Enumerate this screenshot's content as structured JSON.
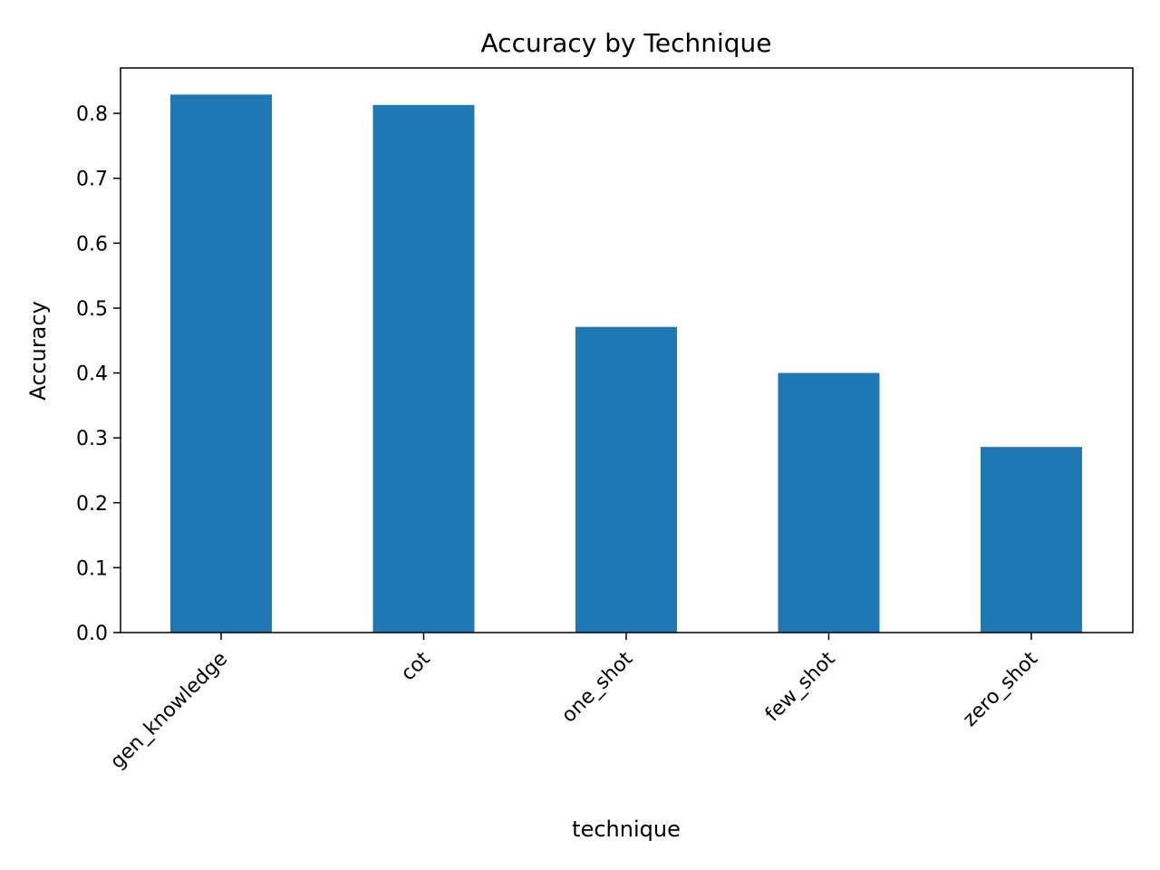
{
  "chart_data": {
    "type": "bar",
    "title": "Accuracy by Technique",
    "xlabel": "technique",
    "ylabel": "Accuracy",
    "categories": [
      "gen_knowledge",
      "cot",
      "one_shot",
      "few_shot",
      "zero_shot"
    ],
    "values": [
      0.829,
      0.813,
      0.471,
      0.4,
      0.286
    ],
    "ylim": [
      0,
      0.87
    ],
    "yticks": [
      "0.0",
      "0.1",
      "0.2",
      "0.3",
      "0.4",
      "0.5",
      "0.6",
      "0.7",
      "0.8"
    ],
    "grid": false,
    "legend": "none",
    "bar_color": "#1f77b4"
  }
}
